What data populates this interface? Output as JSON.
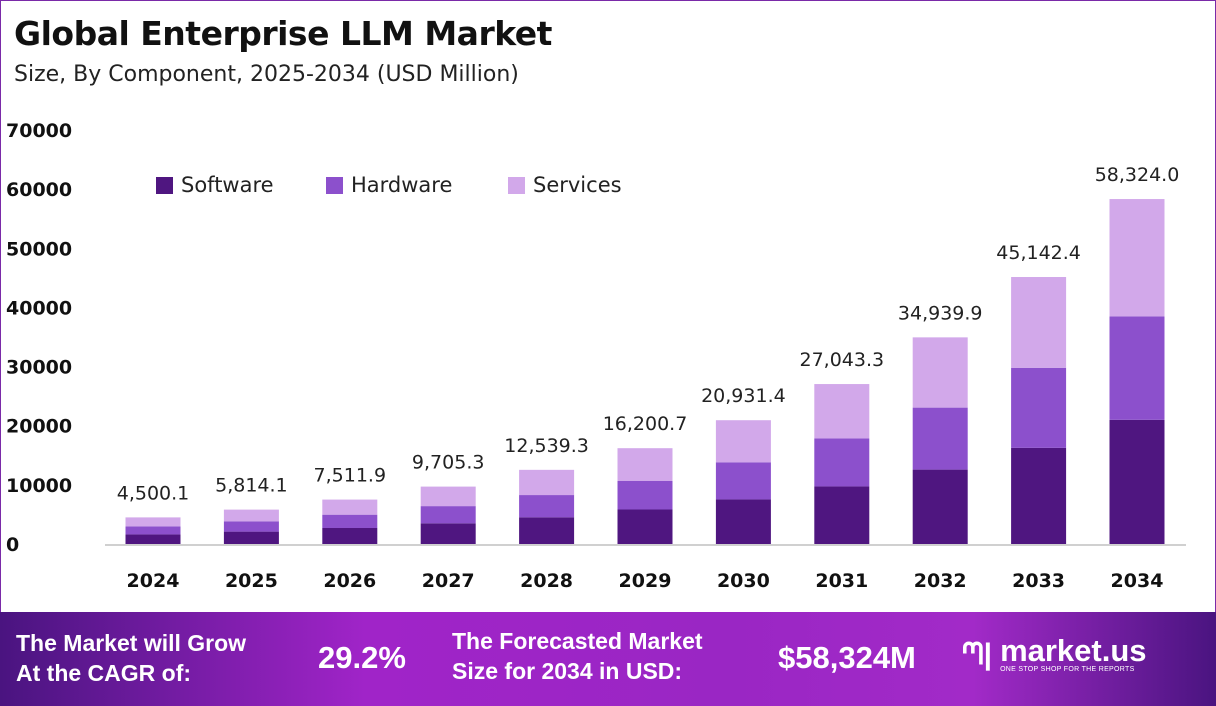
{
  "title": "Global Enterprise LLM Market",
  "subtitle": "Size, By Component, 2025-2034 (USD Million)",
  "chart_data": {
    "type": "bar",
    "stacked": true,
    "categories": [
      "2024",
      "2025",
      "2026",
      "2027",
      "2028",
      "2029",
      "2030",
      "2031",
      "2032",
      "2033",
      "2034"
    ],
    "series": [
      {
        "name": "Software",
        "color": "#4f1680",
        "values": [
          1620.0,
          2093.1,
          2704.3,
          3493.9,
          4514.1,
          5832.3,
          7535.3,
          9735.6,
          12578.4,
          16251.3,
          20996.6
        ]
      },
      {
        "name": "Hardware",
        "color": "#8c50cc",
        "values": [
          1350.0,
          1744.2,
          2253.6,
          2911.6,
          3761.8,
          4860.2,
          6279.4,
          8113.0,
          10482.0,
          13542.7,
          17497.2
        ]
      },
      {
        "name": "Services",
        "color": "#d2a8ea",
        "values": [
          1530.1,
          1976.8,
          2554.0,
          3299.8,
          4263.4,
          5508.2,
          7116.7,
          9194.7,
          11879.5,
          15348.4,
          19830.2
        ]
      }
    ],
    "totals_labels": [
      "4,500.1",
      "5,814.1",
      "7,511.9",
      "9,705.3",
      "12,539.3",
      "16,200.7",
      "20,931.4",
      "27,043.3",
      "34,939.9",
      "45,142.4",
      "58,324.0"
    ],
    "yticks": [
      "0",
      "10000",
      "20000",
      "30000",
      "40000",
      "50000",
      "60000",
      "70000"
    ],
    "ylim": [
      0,
      70000
    ],
    "legend_position": "top-left",
    "grid": false,
    "xlabel": "",
    "ylabel": ""
  },
  "footer": {
    "cagr_line1": "The Market will Grow",
    "cagr_line2": "At the CAGR of:",
    "cagr_value": "29.2%",
    "forecast_line1": "The Forecasted Market",
    "forecast_line2": "Size for 2034 in USD:",
    "forecast_value": "$58,324M",
    "logo_name": "market.us",
    "logo_tagline": "ONE STOP SHOP FOR THE REPORTS"
  }
}
